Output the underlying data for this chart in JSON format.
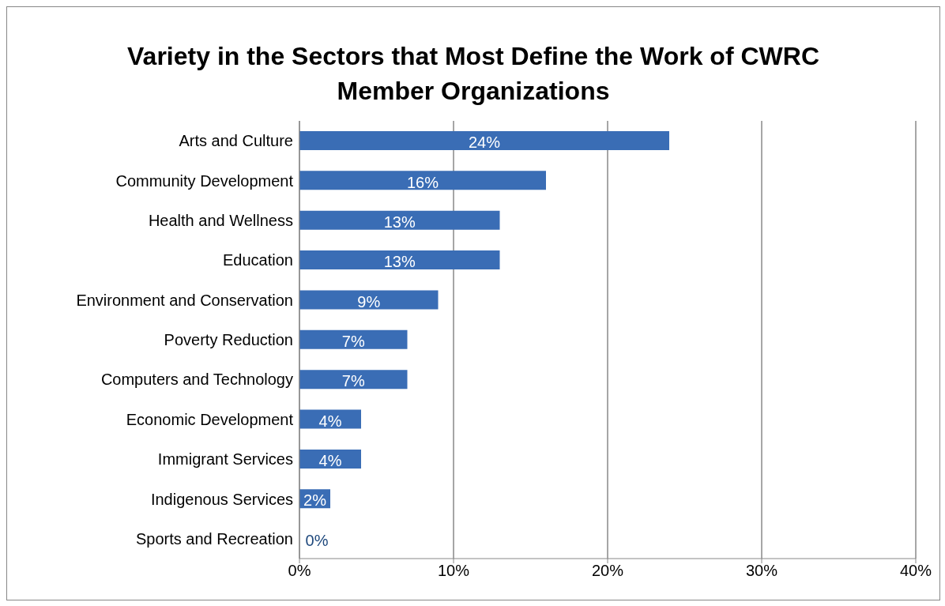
{
  "chart_data": {
    "type": "bar",
    "orientation": "horizontal",
    "title": "Variety in the Sectors that Most Define the Work of CWRC Member Organizations",
    "categories": [
      "Arts and Culture",
      "Community Development",
      "Health and Wellness",
      "Education",
      "Environment and Conservation",
      "Poverty Reduction",
      "Computers and Technology",
      "Economic Development",
      "Immigrant Services",
      "Indigenous Services",
      "Sports and Recreation"
    ],
    "values": [
      24,
      16,
      13,
      13,
      9,
      7,
      7,
      4,
      4,
      2,
      0
    ],
    "value_labels": [
      "24%",
      "16%",
      "13%",
      "13%",
      "9%",
      "7%",
      "7%",
      "4%",
      "4%",
      "2%",
      "0%"
    ],
    "color": "#3a6db5",
    "xlim": [
      0,
      40
    ],
    "xticks": [
      {
        "value": 0,
        "label": "0%"
      },
      {
        "value": 10,
        "label": "10%"
      },
      {
        "value": 20,
        "label": "20%"
      },
      {
        "value": 30,
        "label": "30%"
      },
      {
        "value": 40,
        "label": "40%"
      }
    ],
    "grid": "x"
  }
}
